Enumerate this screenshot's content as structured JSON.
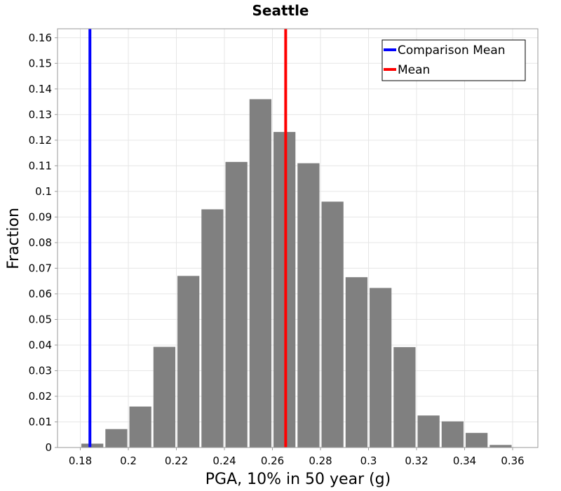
{
  "chart_data": {
    "type": "bar",
    "title": "Seattle",
    "xlabel": "PGA, 10% in 50 year (g)",
    "ylabel": "Fraction",
    "xlim": [
      0.1705,
      0.3705
    ],
    "ylim": [
      0,
      0.1635
    ],
    "grid": true,
    "legend_position": "top-right",
    "bar_color": "#808080",
    "bin_width": 0.01,
    "bins": [
      {
        "center": 0.185,
        "value": 0.0015
      },
      {
        "center": 0.195,
        "value": 0.0072
      },
      {
        "center": 0.205,
        "value": 0.016
      },
      {
        "center": 0.215,
        "value": 0.0393
      },
      {
        "center": 0.225,
        "value": 0.067
      },
      {
        "center": 0.235,
        "value": 0.093
      },
      {
        "center": 0.245,
        "value": 0.1115
      },
      {
        "center": 0.255,
        "value": 0.136
      },
      {
        "center": 0.265,
        "value": 0.1232
      },
      {
        "center": 0.275,
        "value": 0.111
      },
      {
        "center": 0.285,
        "value": 0.096
      },
      {
        "center": 0.295,
        "value": 0.0665
      },
      {
        "center": 0.305,
        "value": 0.0623
      },
      {
        "center": 0.315,
        "value": 0.0392
      },
      {
        "center": 0.325,
        "value": 0.0125
      },
      {
        "center": 0.335,
        "value": 0.0102
      },
      {
        "center": 0.345,
        "value": 0.0057
      },
      {
        "center": 0.355,
        "value": 0.001
      }
    ],
    "x_ticks": [
      "0.18",
      "0.2",
      "0.22",
      "0.24",
      "0.26",
      "0.28",
      "0.3",
      "0.32",
      "0.34",
      "0.36"
    ],
    "y_ticks": [
      "0",
      "0.01",
      "0.02",
      "0.03",
      "0.04",
      "0.05",
      "0.06",
      "0.07",
      "0.08",
      "0.09",
      "0.1",
      "0.11",
      "0.12",
      "0.13",
      "0.14",
      "0.15",
      "0.16"
    ],
    "vlines": [
      {
        "name": "Comparison Mean",
        "x": 0.184,
        "color": "#0000ff"
      },
      {
        "name": "Mean",
        "x": 0.2655,
        "color": "#ff0000"
      }
    ]
  }
}
